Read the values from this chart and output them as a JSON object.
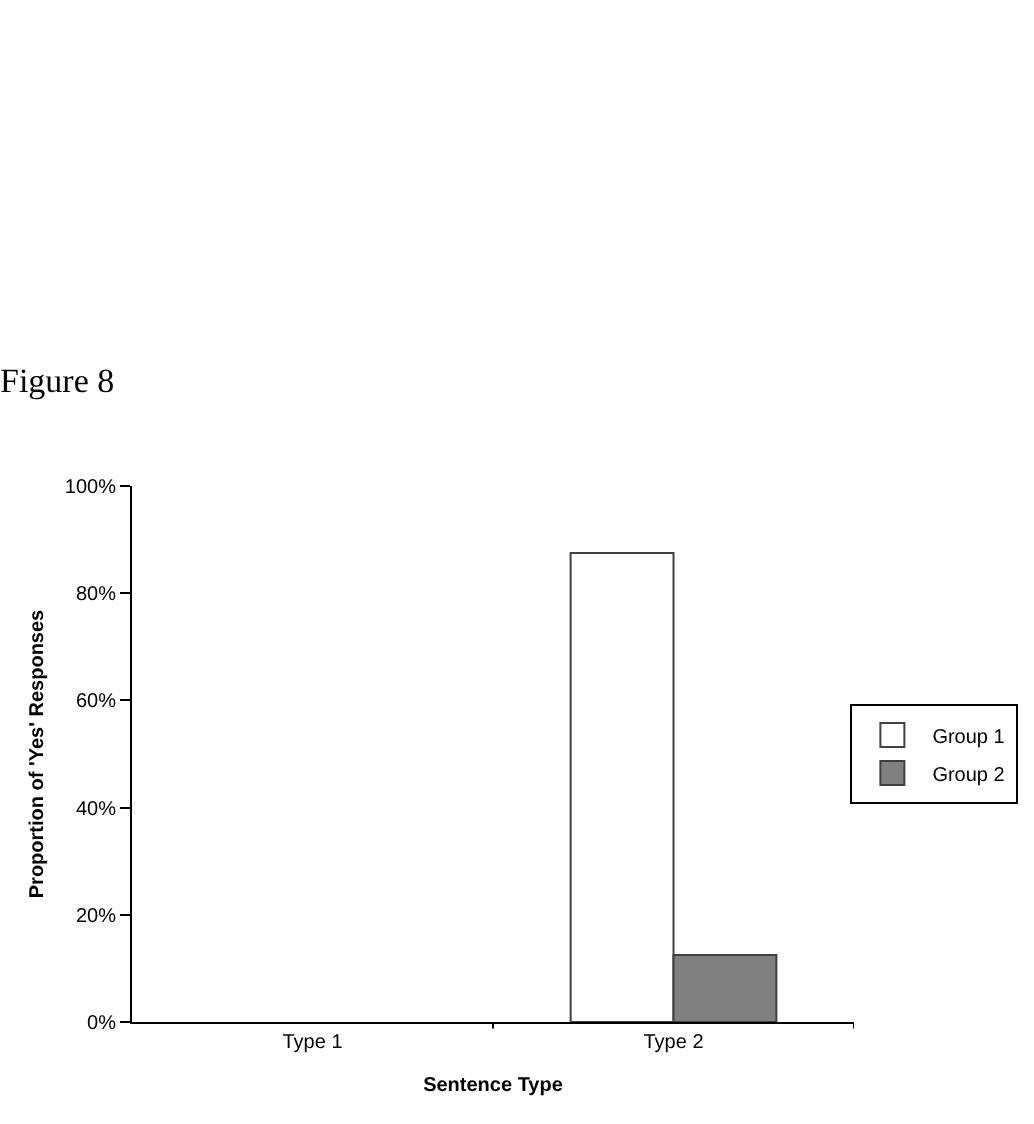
{
  "chart_data": {
    "type": "bar",
    "title": "Figure 8",
    "xlabel": "Sentence Type",
    "ylabel": "Proportion of 'Yes' Responses",
    "categories": [
      "Type 1",
      "Type 2"
    ],
    "series": [
      {
        "name": "Group 1",
        "color": "#ffffff",
        "values": [
          null,
          87.5
        ]
      },
      {
        "name": "Group 2",
        "color": "#808080",
        "values": [
          null,
          12.5
        ]
      }
    ],
    "ylim": [
      0,
      100
    ],
    "yticks": [
      {
        "value": 0,
        "label": "0%"
      },
      {
        "value": 20,
        "label": "20%"
      },
      {
        "value": 40,
        "label": "40%"
      },
      {
        "value": 60,
        "label": "60%"
      },
      {
        "value": 80,
        "label": "80%"
      },
      {
        "value": 100,
        "label": "100%"
      }
    ],
    "legend": "right"
  }
}
